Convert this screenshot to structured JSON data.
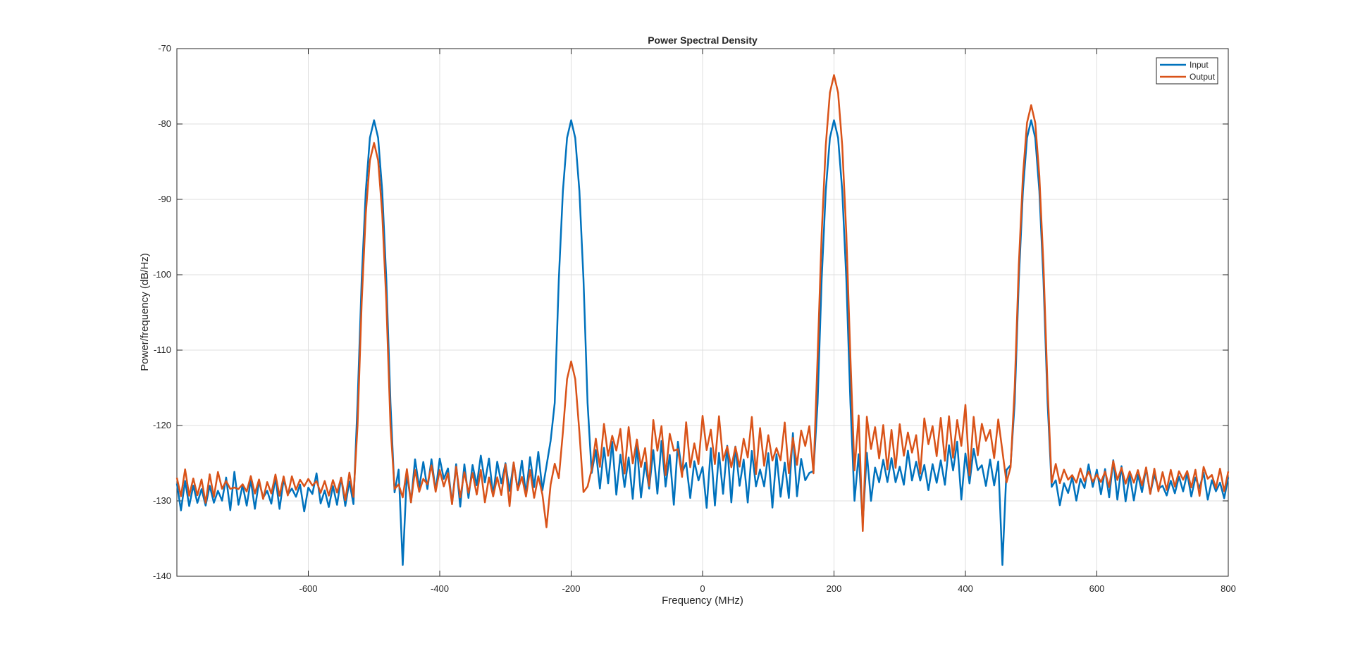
{
  "chart_data": {
    "type": "line",
    "title": "Power Spectral Density",
    "xlabel": "Frequency (MHz)",
    "ylabel": "Power/frequency (dB/Hz)",
    "xlim": [
      -800,
      800
    ],
    "ylim": [
      -140,
      -70
    ],
    "xticks": [
      -600,
      -400,
      -200,
      0,
      200,
      400,
      600,
      800
    ],
    "yticks": [
      -140,
      -130,
      -120,
      -110,
      -100,
      -90,
      -80,
      -70
    ],
    "grid": true,
    "legend_position": "top-right",
    "colors": {
      "input": "#0072BD",
      "output": "#D95319",
      "grid": "#dfdfdf",
      "axis": "#262626"
    },
    "series": [
      {
        "name": "Input",
        "color": "#0072BD",
        "peaks": [
          {
            "center": -500,
            "level": -79.5
          },
          {
            "center": -200,
            "level": -79.5
          },
          {
            "center": 200,
            "level": -79.5
          },
          {
            "center": 500,
            "level": -79.5
          }
        ],
        "floor_regions": [
          {
            "from": -800,
            "to": -530,
            "mean": -129,
            "spread": 4
          },
          {
            "from": -460,
            "to": -230,
            "mean": -127,
            "spread": 5
          },
          {
            "from": -170,
            "to": 170,
            "mean": -126,
            "spread": 6
          },
          {
            "from": 230,
            "to": 460,
            "mean": -126,
            "spread": 5
          },
          {
            "from": 530,
            "to": 800,
            "mean": -128,
            "spread": 4
          }
        ],
        "notable_points": [
          [
            -455,
            -138.5
          ],
          [
            -230,
            -122
          ],
          [
            455,
            -138.5
          ],
          [
            245,
            -133
          ]
        ]
      },
      {
        "name": "Output",
        "color": "#D95319",
        "peaks": [
          {
            "center": -500,
            "level": -82.5
          },
          {
            "center": -200,
            "level": -111.5
          },
          {
            "center": 200,
            "level": -73.5
          },
          {
            "center": 500,
            "level": -77.5
          }
        ],
        "floor_regions": [
          {
            "from": -800,
            "to": -530,
            "mean": -128,
            "spread": 3
          },
          {
            "from": -460,
            "to": -230,
            "mean": -127.5,
            "spread": 4
          },
          {
            "from": -170,
            "to": 170,
            "mean": -123,
            "spread": 6
          },
          {
            "from": 230,
            "to": 460,
            "mean": -122,
            "spread": 6
          },
          {
            "from": 530,
            "to": 800,
            "mean": -127,
            "spread": 3
          }
        ],
        "notable_points": [
          [
            -235,
            -133.5
          ],
          [
            245,
            -134
          ]
        ]
      }
    ]
  }
}
